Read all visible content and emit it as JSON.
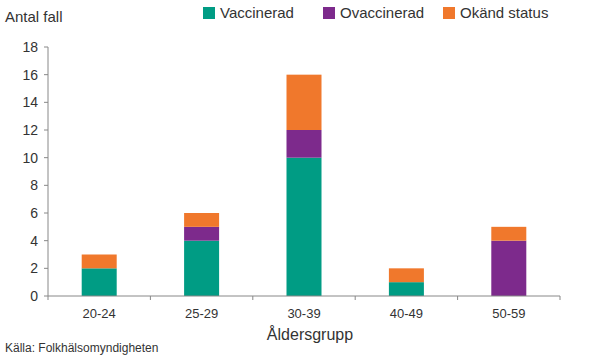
{
  "chart_data": {
    "type": "bar",
    "stacked": true,
    "y_label": "Antal fall",
    "x_label": "Åldersgrupp",
    "annotations": [
      "Källa: Folkhälsomyndigheten"
    ],
    "categories": [
      "20-24",
      "25-29",
      "30-39",
      "40-49",
      "50-59"
    ],
    "series": [
      {
        "name": "Vaccinerad",
        "color": "#009c84",
        "values": [
          2,
          4,
          10,
          1,
          0
        ]
      },
      {
        "name": "Ovaccinerad",
        "color": "#7d2a8c",
        "values": [
          0,
          1,
          2,
          0,
          4
        ]
      },
      {
        "name": "Okänd status",
        "color": "#f0782c",
        "values": [
          1,
          1,
          4,
          1,
          1
        ]
      }
    ],
    "ylim": [
      0,
      18
    ],
    "yticks": [
      0,
      2,
      4,
      6,
      8,
      10,
      12,
      14,
      16,
      18
    ],
    "grid": false,
    "legend": "top"
  }
}
